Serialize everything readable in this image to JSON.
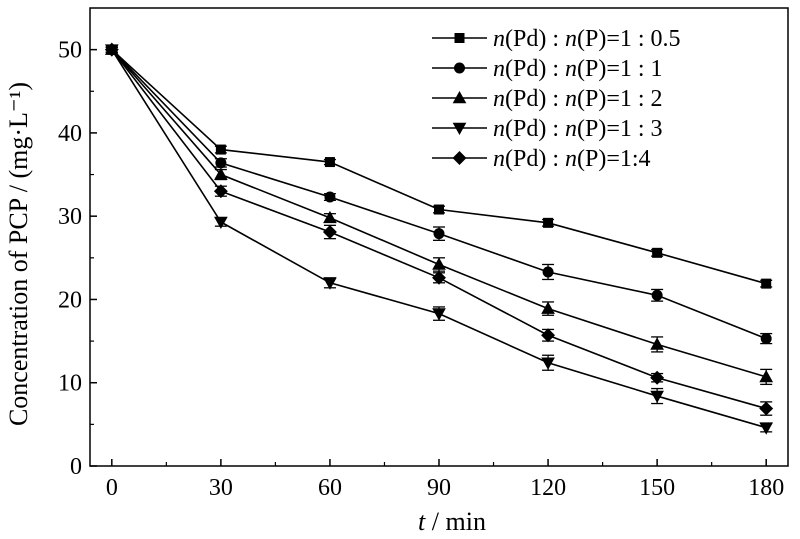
{
  "chart_data": {
    "type": "line",
    "title": "",
    "xlabel": {
      "var": "t",
      "rest": " / min"
    },
    "ylabel": "Concentration of PCP / (mg·L⁻¹)",
    "xlim": [
      -6,
      186
    ],
    "ylim": [
      0,
      55
    ],
    "xticks": [
      0,
      30,
      60,
      90,
      120,
      150,
      180
    ],
    "yticks": [
      0,
      10,
      20,
      30,
      40,
      50
    ],
    "grid": false,
    "legend_position": "top-right",
    "x": [
      0,
      30,
      60,
      90,
      120,
      150,
      180
    ],
    "series": [
      {
        "name": "n(Pd) : n(P)=1 : 0.5",
        "legend_parts": [
          "n",
          "(Pd) : ",
          "n",
          "(P)=1 : 0.5"
        ],
        "marker": "square",
        "values": [
          50,
          38.0,
          36.5,
          30.8,
          29.2,
          25.6,
          21.9
        ],
        "errors": [
          0.3,
          0.4,
          0.3,
          0.4,
          0.4,
          0.4,
          0.4
        ]
      },
      {
        "name": "n(Pd) : n(P)=1 : 1",
        "legend_parts": [
          "n",
          "(Pd) : ",
          "n",
          "(P)=1 : 1"
        ],
        "marker": "circle",
        "values": [
          50,
          36.4,
          32.3,
          27.9,
          23.3,
          20.5,
          15.3
        ],
        "errors": [
          0.3,
          0.5,
          0.4,
          0.8,
          0.9,
          0.7,
          0.6
        ]
      },
      {
        "name": "n(Pd) : n(P)=1 : 2",
        "legend_parts": [
          "n",
          "(Pd) : ",
          "n",
          "(P)=1 : 2"
        ],
        "marker": "triangle-up",
        "values": [
          50,
          35.0,
          29.8,
          24.2,
          18.9,
          14.6,
          10.7
        ],
        "errors": [
          0.3,
          0.6,
          0.5,
          0.8,
          0.8,
          0.9,
          0.9
        ]
      },
      {
        "name": "n(Pd) : n(P)=1 : 3",
        "legend_parts": [
          "n",
          "(Pd) : ",
          "n",
          "(P)=1 : 3"
        ],
        "marker": "triangle-down",
        "values": [
          50,
          29.3,
          22.0,
          18.3,
          12.4,
          8.4,
          4.6
        ],
        "errors": [
          0.3,
          0.5,
          0.6,
          0.8,
          0.9,
          0.9,
          0.5
        ]
      },
      {
        "name": "n(Pd) : n(P)=1:4",
        "legend_parts": [
          "n",
          "(Pd) : ",
          "n",
          "(P)=1:4"
        ],
        "marker": "diamond",
        "values": [
          50,
          33.0,
          28.1,
          22.6,
          15.7,
          10.6,
          6.9
        ],
        "errors": [
          0.3,
          0.6,
          0.8,
          0.6,
          0.7,
          0.5,
          0.8
        ]
      }
    ]
  }
}
